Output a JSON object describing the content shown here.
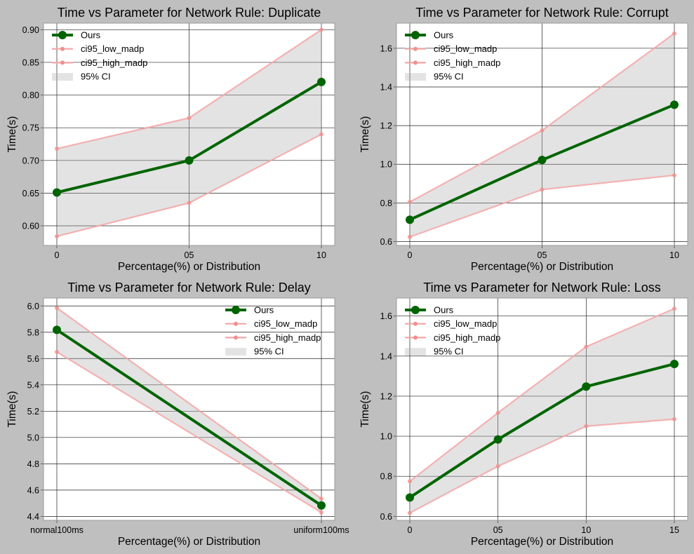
{
  "figure": {
    "background": "#bfbfbf"
  },
  "chart_data": [
    {
      "type": "line",
      "title": "Time vs Parameter for Network Rule: Duplicate",
      "xlabel": "Percentage(%) or Distribution",
      "ylabel": "Time(s)",
      "x": [
        "0",
        "05",
        "10"
      ],
      "ylim": [
        0.57,
        0.91
      ],
      "yticks": [
        0.6,
        0.65,
        0.7,
        0.75,
        0.8,
        0.85,
        0.9
      ],
      "ytick_labels": [
        "0.60",
        "0.65",
        "0.70",
        "0.75",
        "0.80",
        "0.85",
        "0.90"
      ],
      "grid": true,
      "legend_position": "top-left",
      "series": [
        {
          "name": "Ours",
          "values": [
            0.651,
            0.7,
            0.82
          ],
          "color": "#006400"
        },
        {
          "name": "ci95_low_madp",
          "values": [
            0.584,
            0.635,
            0.74
          ],
          "color": "#f4a6a6"
        },
        {
          "name": "ci95_high_madp",
          "values": [
            0.718,
            0.765,
            0.9
          ],
          "color": "#f4a6a6"
        }
      ],
      "band_label": "95% CI"
    },
    {
      "type": "line",
      "title": "Time vs Parameter for Network Rule: Corrupt",
      "xlabel": "Percentage(%) or Distribution",
      "ylabel": "Time(s)",
      "x": [
        "0",
        "05",
        "10"
      ],
      "ylim": [
        0.58,
        1.73
      ],
      "yticks": [
        0.6,
        0.8,
        1.0,
        1.2,
        1.4,
        1.6
      ],
      "ytick_labels": [
        "0.6",
        "0.8",
        "1.0",
        "1.2",
        "1.4",
        "1.6"
      ],
      "grid": true,
      "legend_position": "top-left",
      "series": [
        {
          "name": "Ours",
          "values": [
            0.713,
            1.022,
            1.308
          ],
          "color": "#006400"
        },
        {
          "name": "ci95_low_madp",
          "values": [
            0.624,
            0.869,
            0.943
          ],
          "color": "#f4a6a6"
        },
        {
          "name": "ci95_high_madp",
          "values": [
            0.805,
            1.175,
            1.677
          ],
          "color": "#f4a6a6"
        }
      ],
      "band_label": "95% CI"
    },
    {
      "type": "line",
      "title": "Time vs Parameter for Network Rule: Delay",
      "xlabel": "Percentage(%) or Distribution",
      "ylabel": "Time(s)",
      "x": [
        "normal100ms",
        "uniform100ms"
      ],
      "ylim": [
        4.37,
        6.06
      ],
      "yticks": [
        4.4,
        4.6,
        4.8,
        5.0,
        5.2,
        5.4,
        5.6,
        5.8,
        6.0
      ],
      "ytick_labels": [
        "4.4",
        "4.6",
        "4.8",
        "5.0",
        "5.2",
        "5.4",
        "5.6",
        "5.8",
        "6.0"
      ],
      "grid": true,
      "legend_position": "top-right",
      "series": [
        {
          "name": "Ours",
          "values": [
            5.818,
            4.483
          ],
          "color": "#006400"
        },
        {
          "name": "ci95_low_madp",
          "values": [
            5.65,
            4.43
          ],
          "color": "#f4a6a6"
        },
        {
          "name": "ci95_high_madp",
          "values": [
            5.985,
            4.535
          ],
          "color": "#f4a6a6"
        }
      ],
      "band_label": "95% CI"
    },
    {
      "type": "line",
      "title": "Time vs Parameter for Network Rule: Loss",
      "xlabel": "Percentage(%) or Distribution",
      "ylabel": "Time(s)",
      "x": [
        "0",
        "05",
        "10",
        "15"
      ],
      "ylim": [
        0.58,
        1.69
      ],
      "yticks": [
        0.6,
        0.8,
        1.0,
        1.2,
        1.4,
        1.6
      ],
      "ytick_labels": [
        "0.6",
        "0.8",
        "1.0",
        "1.2",
        "1.4",
        "1.6"
      ],
      "grid": true,
      "legend_position": "top-left",
      "series": [
        {
          "name": "Ours",
          "values": [
            0.694,
            0.984,
            1.248,
            1.361
          ],
          "color": "#006400"
        },
        {
          "name": "ci95_low_madp",
          "values": [
            0.617,
            0.85,
            1.05,
            1.085
          ],
          "color": "#f4a6a6"
        },
        {
          "name": "ci95_high_madp",
          "values": [
            0.775,
            1.117,
            1.447,
            1.637
          ],
          "color": "#f4a6a6"
        }
      ],
      "band_label": "95% CI"
    }
  ]
}
